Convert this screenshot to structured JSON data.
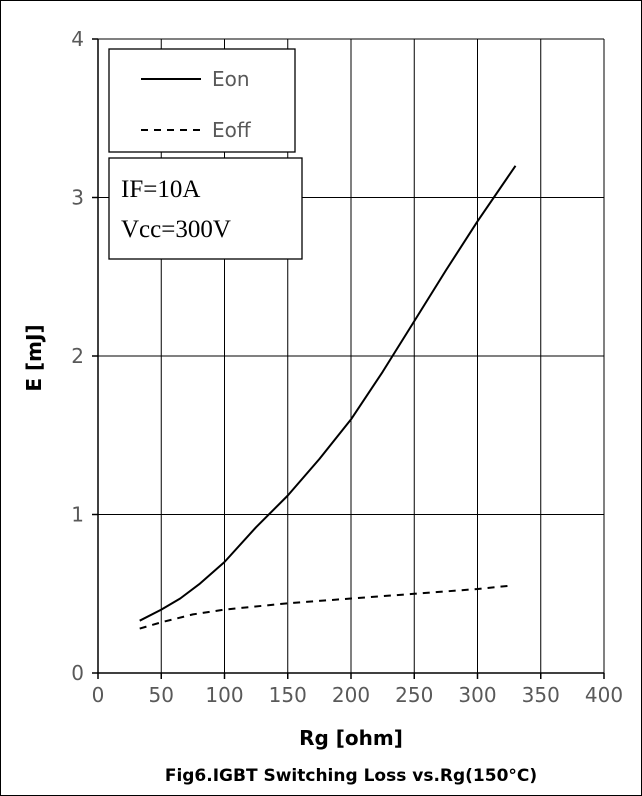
{
  "chart_data": {
    "type": "line",
    "title": "Fig6.IGBT Switching Loss vs.Rg(150°C)",
    "xlabel": "Rg  [ohm]",
    "ylabel": "E  [mJ]",
    "xlim": [
      0,
      400
    ],
    "ylim": [
      0,
      4
    ],
    "xticks": [
      0,
      50,
      100,
      150,
      200,
      250,
      300,
      350,
      400
    ],
    "yticks": [
      0,
      1,
      2,
      3,
      4
    ],
    "grid": true,
    "legend_position": "top-left",
    "annotations": [
      "IF=10A",
      "Vcc=300V"
    ],
    "series": [
      {
        "name": "Eon",
        "style": "solid",
        "x": [
          33,
          50,
          65,
          80,
          100,
          125,
          150,
          175,
          200,
          225,
          250,
          275,
          300,
          330
        ],
        "y": [
          0.33,
          0.4,
          0.47,
          0.56,
          0.7,
          0.92,
          1.12,
          1.35,
          1.6,
          1.9,
          2.22,
          2.54,
          2.85,
          3.2
        ]
      },
      {
        "name": "Eoff",
        "style": "dashed",
        "x": [
          33,
          50,
          75,
          100,
          150,
          200,
          250,
          300,
          325
        ],
        "y": [
          0.28,
          0.32,
          0.37,
          0.4,
          0.44,
          0.47,
          0.5,
          0.53,
          0.55
        ]
      }
    ]
  }
}
